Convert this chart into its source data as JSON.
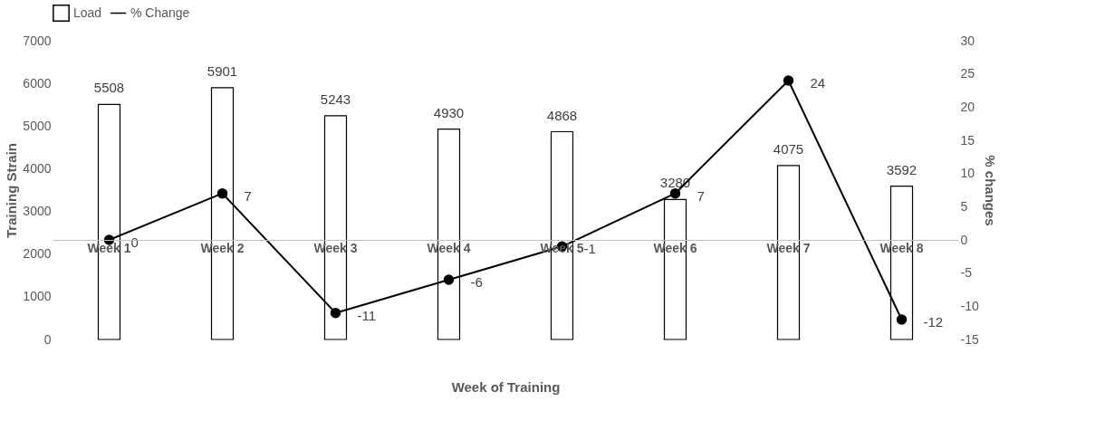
{
  "chart_data": {
    "type": "bar",
    "categories": [
      "Week 1",
      "Week 2",
      "Week 3",
      "Week 4",
      "Week 5",
      "Week 6",
      "Week 7",
      "Week 8"
    ],
    "series": [
      {
        "name": "Load",
        "color": "#ffffff",
        "values": [
          5508,
          5901,
          5243,
          4930,
          4868,
          3280,
          4075,
          3592
        ]
      },
      {
        "name": "% Change",
        "type": "line",
        "color": "#000000",
        "axis": "y2",
        "values": [
          0,
          7,
          -11,
          -6,
          -1,
          7,
          24,
          -12
        ]
      }
    ],
    "ylim": [
      0,
      7000
    ],
    "yticks": [
      0,
      1000,
      2000,
      3000,
      4000,
      5000,
      6000,
      7000
    ],
    "y2lim": [
      -15,
      30
    ],
    "y2ticks": [
      -15,
      -10,
      -5,
      0,
      5,
      10,
      15,
      20,
      25,
      30
    ],
    "xlabel": "Week of Training",
    "ylabel": "Training Strain",
    "y2label": "% changes",
    "data_labels": true,
    "legend": "top",
    "marker": "circle"
  }
}
